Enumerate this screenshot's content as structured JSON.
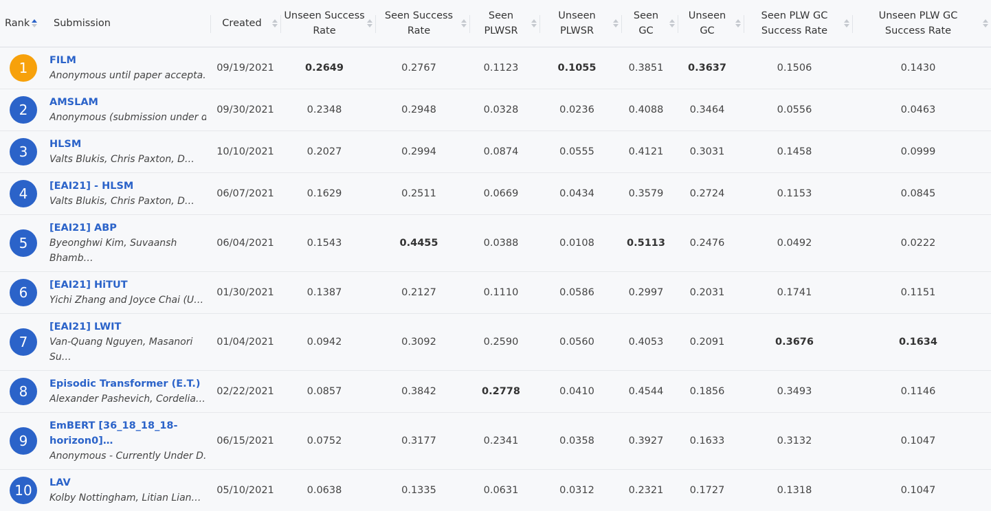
{
  "headers": {
    "rank": "Rank",
    "submission": "Submission",
    "created": "Created",
    "unseen_success": [
      "Unseen Success",
      "Rate"
    ],
    "seen_success": [
      "Seen Success",
      "Rate"
    ],
    "seen_plwsr": [
      "Seen",
      "PLWSR"
    ],
    "unseen_plwsr": [
      "Unseen",
      "PLWSR"
    ],
    "seen_gc": [
      "Seen",
      "GC"
    ],
    "unseen_gc": [
      "Unseen",
      "GC"
    ],
    "seen_plw_gc": [
      "Seen PLW GC",
      "Success Rate"
    ],
    "unseen_plw_gc": [
      "Unseen PLW GC",
      "Success Rate"
    ]
  },
  "rows": [
    {
      "rank": "1",
      "title": "FILM",
      "authors": "Anonymous until paper accepta…",
      "authors2": "",
      "created": "09/19/2021",
      "v": [
        "0.2649",
        "0.2767",
        "0.1123",
        "0.1055",
        "0.3851",
        "0.3637",
        "0.1506",
        "0.1430"
      ]
    },
    {
      "rank": "2",
      "title": "AMSLAM",
      "authors": "Anonymous (submission under d…",
      "authors2": "",
      "created": "09/30/2021",
      "v": [
        "0.2348",
        "0.2948",
        "0.0328",
        "0.0236",
        "0.4088",
        "0.3464",
        "0.0556",
        "0.0463"
      ]
    },
    {
      "rank": "3",
      "title": "HLSM",
      "authors": "Valts Blukis, Chris Paxton, D…",
      "authors2": "",
      "created": "10/10/2021",
      "v": [
        "0.2027",
        "0.2994",
        "0.0874",
        "0.0555",
        "0.4121",
        "0.3031",
        "0.1458",
        "0.0999"
      ]
    },
    {
      "rank": "4",
      "title": "[EAI21] - HLSM",
      "authors": "Valts Blukis, Chris Paxton, D…",
      "authors2": "",
      "created": "06/07/2021",
      "v": [
        "0.1629",
        "0.2511",
        "0.0669",
        "0.0434",
        "0.3579",
        "0.2724",
        "0.1153",
        "0.0845"
      ]
    },
    {
      "rank": "5",
      "title": "[EAI21] ABP",
      "authors": "Byeonghwi Kim, Suvaansh",
      "authors2": "Bhamb…",
      "created": "06/04/2021",
      "v": [
        "0.1543",
        "0.4455",
        "0.0388",
        "0.0108",
        "0.5113",
        "0.2476",
        "0.0492",
        "0.0222"
      ]
    },
    {
      "rank": "6",
      "title": "[EAI21] HiTUT",
      "authors": "Yichi Zhang and Joyce Chai (U…",
      "authors2": "",
      "created": "01/30/2021",
      "v": [
        "0.1387",
        "0.2127",
        "0.1110",
        "0.0586",
        "0.2997",
        "0.2031",
        "0.1741",
        "0.1151"
      ]
    },
    {
      "rank": "7",
      "title": "[EAI21] LWIT",
      "authors": "Van-Quang Nguyen, Masanori",
      "authors2": "Su…",
      "created": "01/04/2021",
      "v": [
        "0.0942",
        "0.3092",
        "0.2590",
        "0.0560",
        "0.4053",
        "0.2091",
        "0.3676",
        "0.1634"
      ]
    },
    {
      "rank": "8",
      "title": "Episodic Transformer (E.T.)",
      "authors": "Alexander Pashevich, Cordelia…",
      "authors2": "",
      "created": "02/22/2021",
      "v": [
        "0.0857",
        "0.3842",
        "0.2778",
        "0.0410",
        "0.4544",
        "0.1856",
        "0.3493",
        "0.1146"
      ]
    },
    {
      "rank": "9",
      "title": "EmBERT [36_18_18_18-",
      "title2": "horizon0]…",
      "authors": "Anonymous - Currently Under D…",
      "authors2": "",
      "created": "06/15/2021",
      "v": [
        "0.0752",
        "0.3177",
        "0.2341",
        "0.0358",
        "0.3927",
        "0.1633",
        "0.3132",
        "0.1047"
      ]
    },
    {
      "rank": "10",
      "title": "LAV",
      "authors": "Kolby Nottingham, Litian Lian…",
      "authors2": "",
      "created": "05/10/2021",
      "v": [
        "0.0638",
        "0.1335",
        "0.0631",
        "0.0312",
        "0.2321",
        "0.1727",
        "0.1318",
        "0.1047"
      ]
    }
  ],
  "colors": {
    "accent": "#2b63c9",
    "gold": "#f7a10b"
  }
}
